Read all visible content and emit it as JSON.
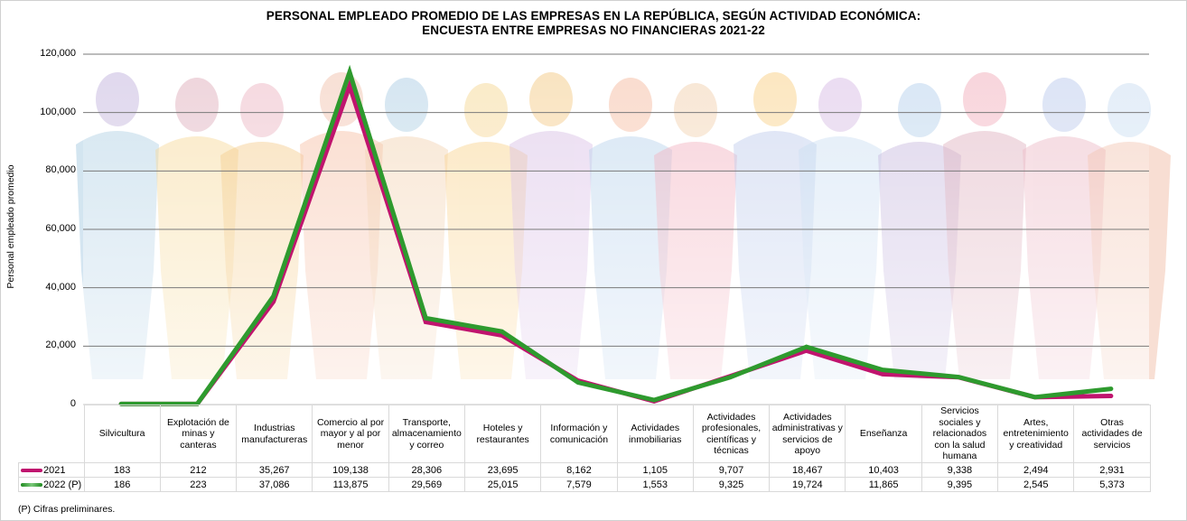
{
  "chart_data": {
    "type": "line",
    "title": "PERSONAL  EMPLEADO PROMEDIO DE LAS EMPRESAS  EN LA REPÚBLICA,  SEGÚN ACTIVIDAD  ECONÓMICA:",
    "subtitle": "ENCUESTA ENTRE EMPRESAS  NO FINANCIERAS  2021-22",
    "xlabel": "",
    "ylabel": "Personal empleado promedio",
    "ylim": [
      0,
      120000
    ],
    "yticks": [
      "0",
      "20,000",
      "40,000",
      "60,000",
      "80,000",
      "100,000",
      "120,000"
    ],
    "ytick_values": [
      0,
      20000,
      40000,
      60000,
      80000,
      100000,
      120000
    ],
    "grid": true,
    "legend": "data-table-left",
    "categories": [
      "Silvicultura",
      "Explotación de minas y canteras",
      "Industrias manufactureras",
      "Comercio al por mayor y al por menor",
      "Transporte, almacenamiento y correo",
      "Hoteles y restaurantes",
      "Información y comunicación",
      "Actividades inmobiliarias",
      "Actividades profesionales, científicas y técnicas",
      "Actividades administrativas y servicios de apoyo",
      "Enseñanza",
      "Servicios sociales y relacionados con la salud humana",
      "Artes, entretenimiento y creatividad",
      "Otras actividades de servicios"
    ],
    "series": [
      {
        "name": "2021",
        "color": "#c0146e",
        "values": [
          183,
          212,
          35267,
          109138,
          28306,
          23695,
          8162,
          1105,
          9707,
          18467,
          10403,
          9338,
          2494,
          2931
        ],
        "labels": [
          "183",
          "212",
          "35,267",
          "109,138",
          "28,306",
          "23,695",
          "8,162",
          "1,105",
          "9,707",
          "18,467",
          "10,403",
          "9,338",
          "2,494",
          "2,931"
        ]
      },
      {
        "name": "2022 (P)",
        "color": "#2e9a2e",
        "values": [
          186,
          223,
          37086,
          113875,
          29569,
          25015,
          7579,
          1553,
          9325,
          19724,
          11865,
          9395,
          2545,
          5373
        ],
        "labels": [
          "186",
          "223",
          "37,086",
          "113,875",
          "29,569",
          "25,015",
          "7,579",
          "1,553",
          "9,325",
          "19,724",
          "11,865",
          "9,395",
          "2,545",
          "5,373"
        ]
      }
    ]
  },
  "footnote": "(P) Cifras preliminares."
}
